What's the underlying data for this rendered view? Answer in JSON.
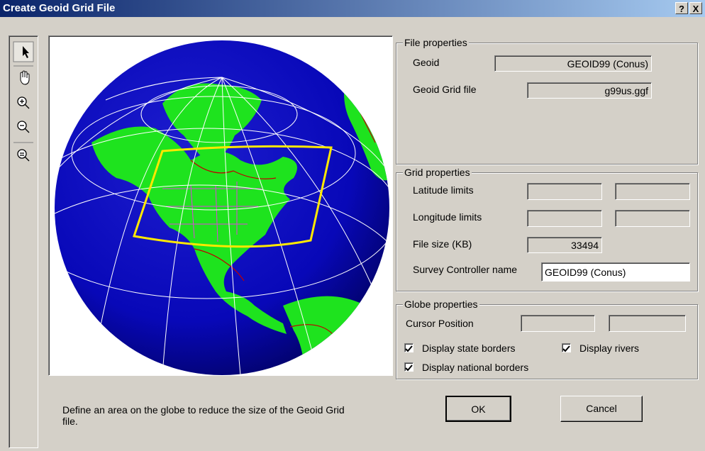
{
  "title_bar": {
    "title": "Create Geoid Grid File",
    "help": "?",
    "close": "X"
  },
  "file_properties": {
    "heading": "File properties",
    "geoid_label": "Geoid",
    "geoid_value": "GEOID99 (Conus)",
    "grid_file_label": "Geoid Grid file",
    "grid_file_value": "g99us.ggf"
  },
  "grid_properties": {
    "heading": "Grid properties",
    "latitude_label": "Latitude limits",
    "longitude_label": "Longitude limits",
    "file_size_label": "File size (KB)",
    "file_size_value": 33494,
    "survey_controller_label": "Survey Controller name",
    "survey_controller_value": "GEOID99 (Conus)"
  },
  "globe_properties": {
    "heading": "Globe properties",
    "cursor_label": "Cursor Position",
    "options": [
      {
        "label": "Display state borders",
        "checked": true
      },
      {
        "label": "Display rivers",
        "checked": true
      },
      {
        "label": "Display national borders",
        "checked": true
      }
    ]
  },
  "instructions": "Define an area on the globe to reduce the size of the Geoid Grid file.",
  "buttons": {
    "ok": "OK",
    "cancel": "Cancel"
  }
}
